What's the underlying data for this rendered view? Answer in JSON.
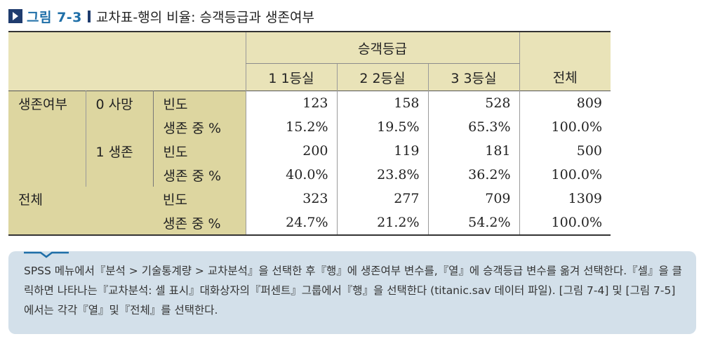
{
  "figure": {
    "label": "그림 7-3",
    "title": "교차표-행의 비율: 승객등급과 생존여부"
  },
  "table": {
    "col_group_header": "승객등급",
    "columns": [
      "1 1등실",
      "2 2등실",
      "3 3등실"
    ],
    "total_header": "전체",
    "row_var": "생존여부",
    "groups": [
      {
        "label": "0 사망",
        "rows": [
          {
            "stat": "빈도",
            "values": [
              "123",
              "158",
              "528"
            ],
            "total": "809"
          },
          {
            "stat": "생존 중 %",
            "values": [
              "15.2%",
              "19.5%",
              "65.3%"
            ],
            "total": "100.0%"
          }
        ]
      },
      {
        "label": "1 생존",
        "rows": [
          {
            "stat": "빈도",
            "values": [
              "200",
              "119",
              "181"
            ],
            "total": "500"
          },
          {
            "stat": "생존 중 %",
            "values": [
              "40.0%",
              "23.8%",
              "36.2%"
            ],
            "total": "100.0%"
          }
        ]
      }
    ],
    "total_row": {
      "label": "전체",
      "rows": [
        {
          "stat": "빈도",
          "values": [
            "323",
            "277",
            "709"
          ],
          "total": "1309"
        },
        {
          "stat": "생존 중 %",
          "values": [
            "24.7%",
            "21.2%",
            "54.2%"
          ],
          "total": "100.0%"
        }
      ]
    }
  },
  "note": {
    "text": "SPSS 메뉴에서『분석 > 기술통계량 > 교차분석』을 선택한 후『행』에 생존여부 변수를,『열』에 승객등급 변수를 옮겨 선택한다.『셀』을 클릭하면 나타나는『교차분석: 셀 표시』대화상자의『퍼센트』그룹에서『행』을 선택한다 (titanic.sav 데이터 파일). [그림 7-4] 및 [그림 7-5]에서는 각각『열』및『전체』를 선택한다."
  },
  "colors": {
    "label_blue": "#1f6fa8",
    "header_bg": "#e9e3b8",
    "label_bg": "#ddd6a0",
    "note_bg": "#d3e0ea"
  }
}
